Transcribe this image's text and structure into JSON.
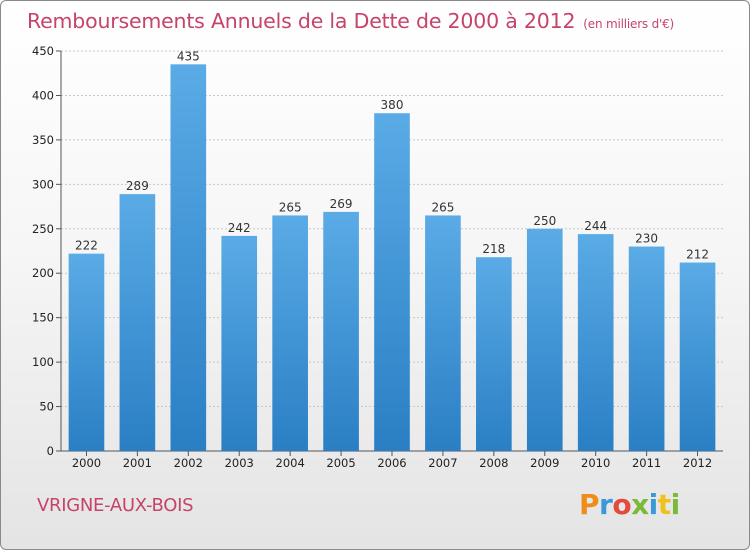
{
  "header": {
    "title": "Remboursements Annuels de la Dette de 2000 à 2012",
    "subtitle": "(en milliers d'€)"
  },
  "footer": {
    "town": "VRIGNE-AUX-BOIS",
    "logo": "Proxiti"
  },
  "colors": {
    "bar_top": "#5aabe6",
    "bar_bottom": "#2a7fc4",
    "title": "#c6436a"
  },
  "chart_data": {
    "type": "bar",
    "title": "Remboursements Annuels de la Dette de 2000 à 2012",
    "subtitle": "(en milliers d'€)",
    "categories": [
      "2000",
      "2001",
      "2002",
      "2003",
      "2004",
      "2005",
      "2006",
      "2007",
      "2008",
      "2009",
      "2010",
      "2011",
      "2012"
    ],
    "values": [
      222,
      289,
      435,
      242,
      265,
      269,
      380,
      265,
      218,
      250,
      244,
      230,
      212
    ],
    "xlabel": "",
    "ylabel": "",
    "ylim": [
      0,
      450
    ],
    "yticks": [
      0,
      50,
      100,
      150,
      200,
      250,
      300,
      350,
      400,
      450
    ],
    "grid": true
  }
}
